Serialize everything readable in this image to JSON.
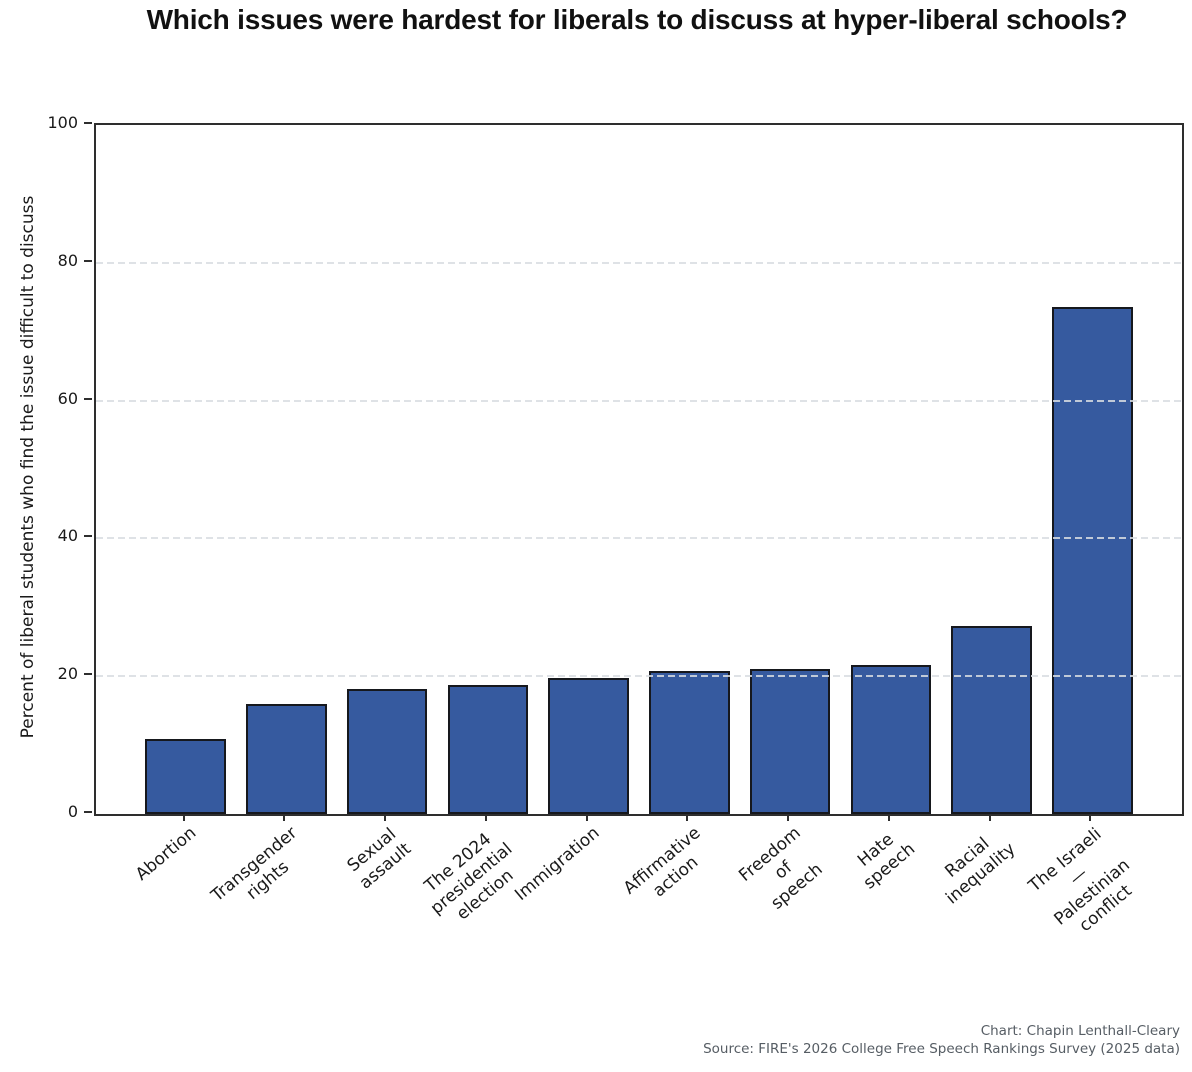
{
  "chart_data": {
    "type": "bar",
    "title": "Which issues were hardest for liberals to discuss at hyper-liberal schools?",
    "ylabel": "Percent of liberal students who find the issue difficult to discuss",
    "xlabel": "",
    "categories": [
      "Abortion",
      "Transgender rights",
      "Sexual assault",
      "The 2024 presidential election",
      "Immigration",
      "Affirmative action",
      "Freedom of speech",
      "Hate speech",
      "Racial inequality",
      "The Israeli—Palestinian\nconflict"
    ],
    "values": [
      10.9,
      15.9,
      18.2,
      18.7,
      19.8,
      20.8,
      21.1,
      21.6,
      27.3,
      73.6
    ],
    "ylim": [
      0,
      100
    ],
    "yticks": [
      0,
      20,
      40,
      60,
      80,
      100
    ],
    "grid": "horizontal-dashed",
    "legend": "none",
    "bar_color": "#365a9f",
    "bar_edge_color": "#16181d",
    "grid_color": "#d9dde2",
    "spine_color": "#2e2e2e"
  },
  "caption": {
    "chart_credit": "Chart: Chapin Lenthall-Cleary",
    "source": "Source: FIRE's 2026 College Free Speech Rankings Survey (2025 data)"
  }
}
